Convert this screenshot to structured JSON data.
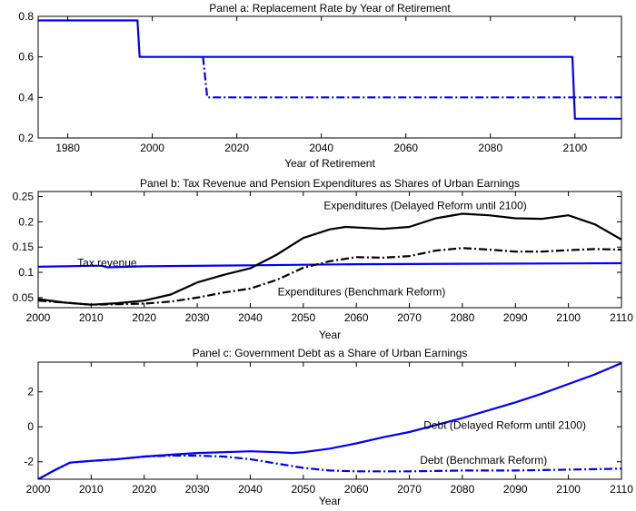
{
  "chart_data": [
    {
      "type": "line",
      "title": "Panel a: Replacement Rate by Year of Retirement",
      "xlabel": "Year of Retirement",
      "ylabel": "",
      "xlim": [
        1973,
        2111
      ],
      "ylim": [
        0.2,
        0.8
      ],
      "xticks": [
        1980,
        2000,
        2020,
        2040,
        2060,
        2080,
        2100
      ],
      "yticks": [
        0.2,
        0.4,
        0.6,
        0.8
      ],
      "series": [
        {
          "style": "solid",
          "color": "#0000ff",
          "x": [
            1973,
            1996.5,
            1997,
            2099.4,
            2100,
            2111
          ],
          "y": [
            0.78,
            0.78,
            0.6,
            0.6,
            0.295,
            0.295
          ]
        },
        {
          "style": "dashdot",
          "color": "#0000ff",
          "x": [
            2012,
            2013,
            2111
          ],
          "y": [
            0.6,
            0.4,
            0.4
          ]
        }
      ],
      "annotations": []
    },
    {
      "type": "line",
      "title": "Panel b: Tax Revenue and Pension Expenditures as Shares of Urban Earnings",
      "xlabel": "Year",
      "ylabel": "",
      "xlim": [
        2000,
        2110
      ],
      "ylim": [
        0.03,
        0.26
      ],
      "xticks": [
        2000,
        2010,
        2020,
        2030,
        2040,
        2050,
        2060,
        2070,
        2080,
        2090,
        2100,
        2110
      ],
      "yticks": [
        0.05,
        0.1,
        0.15,
        0.2,
        0.25
      ],
      "series": [
        {
          "style": "solid",
          "color": "#0000ff",
          "x": [
            2000,
            2005,
            2010,
            2012,
            2013,
            2020,
            2040,
            2060,
            2080,
            2110
          ],
          "y": [
            0.111,
            0.112,
            0.113,
            0.113,
            0.11,
            0.112,
            0.114,
            0.116,
            0.117,
            0.118
          ]
        },
        {
          "style": "solid",
          "color": "#000000",
          "x": [
            2000,
            2005,
            2010,
            2015,
            2020,
            2025,
            2030,
            2035,
            2040,
            2045,
            2050,
            2055,
            2058,
            2065,
            2070,
            2075,
            2080,
            2085,
            2090,
            2095,
            2100,
            2105,
            2110
          ],
          "y": [
            0.047,
            0.04,
            0.036,
            0.039,
            0.044,
            0.056,
            0.08,
            0.095,
            0.108,
            0.135,
            0.168,
            0.185,
            0.19,
            0.186,
            0.19,
            0.207,
            0.216,
            0.213,
            0.207,
            0.206,
            0.213,
            0.195,
            0.165
          ]
        },
        {
          "style": "dashdot",
          "color": "#000000",
          "x": [
            2000,
            2005,
            2010,
            2015,
            2020,
            2025,
            2030,
            2035,
            2040,
            2045,
            2050,
            2055,
            2060,
            2065,
            2070,
            2075,
            2080,
            2085,
            2090,
            2095,
            2100,
            2105,
            2110
          ],
          "y": [
            0.044,
            0.04,
            0.036,
            0.037,
            0.038,
            0.042,
            0.05,
            0.06,
            0.068,
            0.085,
            0.109,
            0.122,
            0.13,
            0.129,
            0.132,
            0.143,
            0.148,
            0.145,
            0.141,
            0.141,
            0.144,
            0.146,
            0.145
          ]
        }
      ],
      "annotations": [
        {
          "text": "Expenditures (Delayed Reform until 2100)",
          "x": 2073,
          "y": 0.232
        },
        {
          "text": "Tax revenue",
          "x": 2013,
          "y": 0.119
        },
        {
          "text": "Expenditures (Benchmark Reform)",
          "x": 2061,
          "y": 0.061
        }
      ]
    },
    {
      "type": "line",
      "title": "Panel c: Government Debt as a Share of Urban Earnings",
      "xlabel": "Year",
      "ylabel": "",
      "xlim": [
        2000,
        2110
      ],
      "ylim": [
        -3,
        3.7
      ],
      "xticks": [
        2000,
        2010,
        2020,
        2030,
        2040,
        2050,
        2060,
        2070,
        2080,
        2090,
        2100,
        2110
      ],
      "yticks": [
        -2,
        0,
        2
      ],
      "series": [
        {
          "style": "solid",
          "color": "#0000ff",
          "x": [
            2000,
            2003,
            2006,
            2008,
            2010,
            2015,
            2020,
            2025,
            2030,
            2035,
            2040,
            2045,
            2048,
            2050,
            2055,
            2060,
            2065,
            2070,
            2075,
            2080,
            2085,
            2090,
            2095,
            2100,
            2105,
            2110
          ],
          "y": [
            -3.0,
            -2.5,
            -2.05,
            -2.0,
            -1.95,
            -1.85,
            -1.7,
            -1.6,
            -1.5,
            -1.45,
            -1.4,
            -1.45,
            -1.5,
            -1.45,
            -1.25,
            -0.95,
            -0.6,
            -0.3,
            0.1,
            0.5,
            0.95,
            1.4,
            1.9,
            2.45,
            3.0,
            3.65
          ]
        },
        {
          "style": "dashdot",
          "color": "#0000ff",
          "x": [
            2000,
            2003,
            2006,
            2010,
            2015,
            2020,
            2025,
            2030,
            2035,
            2040,
            2045,
            2050,
            2055,
            2060,
            2070,
            2080,
            2090,
            2100,
            2110
          ],
          "y": [
            -3.0,
            -2.5,
            -2.05,
            -1.95,
            -1.85,
            -1.7,
            -1.65,
            -1.65,
            -1.7,
            -1.85,
            -2.1,
            -2.35,
            -2.5,
            -2.55,
            -2.55,
            -2.5,
            -2.5,
            -2.45,
            -2.4
          ]
        }
      ],
      "annotations": [
        {
          "text": "Debt (Delayed Reform until 2100)",
          "x": 2088,
          "y": 0.1
        },
        {
          "text": "Debt (Benchmark Reform)",
          "x": 2084,
          "y": -1.9
        }
      ]
    }
  ]
}
